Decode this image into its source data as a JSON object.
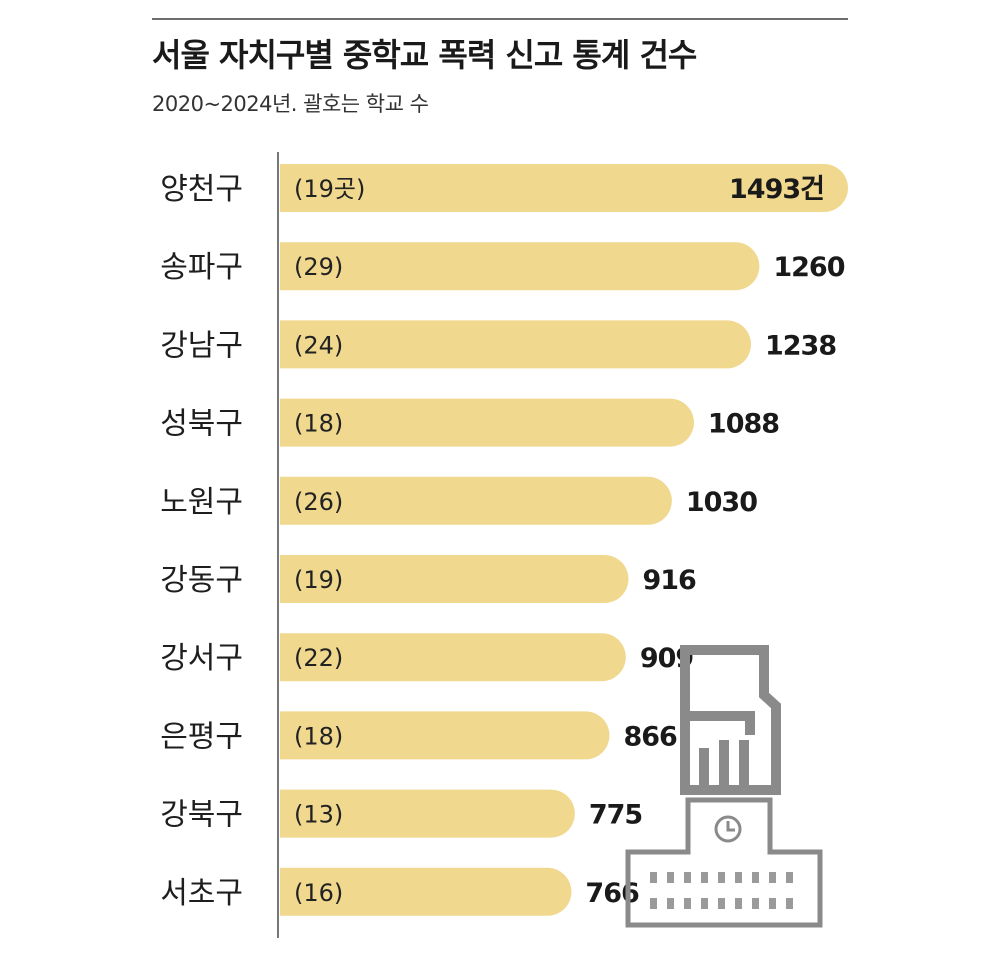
{
  "header": {
    "title": "서울 자치구별 중학교 폭력 신고 통계 건수",
    "subtitle": "2020~2024년. 괄호는 학교 수"
  },
  "colors": {
    "bar": "#f0d88f",
    "axis": "#777777",
    "icon": "#8a8a8a"
  },
  "icons": [
    "fist-icon",
    "school-building-icon",
    "clock-icon"
  ],
  "chart_data": {
    "type": "bar",
    "orientation": "horizontal",
    "title": "서울 자치구별 중학교 폭력 신고 통계 건수",
    "subtitle": "2020~2024년. 괄호는 학교 수",
    "unit_suffix": "건",
    "categories": [
      "양천구",
      "송파구",
      "강남구",
      "성북구",
      "노원구",
      "강동구",
      "강서구",
      "은평구",
      "강북구",
      "서초구"
    ],
    "values": [
      1493,
      1260,
      1238,
      1088,
      1030,
      916,
      909,
      866,
      775,
      766
    ],
    "value_labels": [
      "1493건",
      "1260",
      "1238",
      "1088",
      "1030",
      "916",
      "909",
      "866",
      "775",
      "766"
    ],
    "school_counts": [
      "(19곳)",
      "(29)",
      "(24)",
      "(18)",
      "(26)",
      "(19)",
      "(22)",
      "(18)",
      "(13)",
      "(16)"
    ],
    "xlim": [
      0,
      1493
    ],
    "grid": false,
    "legend": "none"
  }
}
